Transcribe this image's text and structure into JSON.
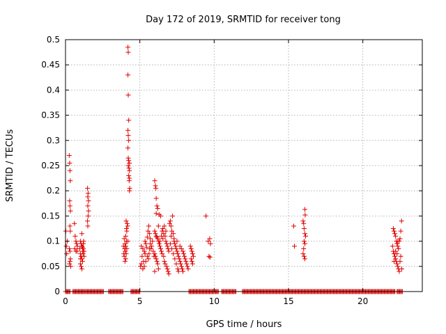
{
  "chart_data": {
    "type": "scatter",
    "title": "Day 172 of 2019, SRMTID for receiver tong",
    "xlabel": "GPS time / hours",
    "ylabel": "SRMTID / TECUs",
    "xlim": [
      0,
      24
    ],
    "ylim": [
      0,
      0.5
    ],
    "xticks": [
      0,
      5,
      10,
      15,
      20
    ],
    "xtick_labels": [
      "0",
      "5",
      "10",
      "15",
      "20"
    ],
    "yticks": [
      0,
      0.05,
      0.1,
      0.15,
      0.2,
      0.25,
      0.3,
      0.35,
      0.4,
      0.45,
      0.5
    ],
    "ytick_labels": [
      "0",
      "0.05",
      "0.1",
      "0.15",
      "0.2",
      "0.25",
      "0.3",
      "0.35",
      "0.4",
      "0.45",
      "0.5"
    ],
    "grid": true,
    "marker": "+",
    "color": "#e00000",
    "series": [
      {
        "name": "SRMTID",
        "points": [
          [
            0.02,
            0.12
          ],
          [
            0.05,
            0.09
          ],
          [
            0.08,
            0.075
          ],
          [
            0.12,
            0.1
          ],
          [
            0.25,
            0.27
          ],
          [
            0.28,
            0.255
          ],
          [
            0.3,
            0.24
          ],
          [
            0.32,
            0.22
          ],
          [
            0.28,
            0.18
          ],
          [
            0.3,
            0.17
          ],
          [
            0.33,
            0.16
          ],
          [
            0.3,
            0.13
          ],
          [
            0.32,
            0.12
          ],
          [
            0.26,
            0.085
          ],
          [
            0.3,
            0.08
          ],
          [
            0.33,
            0.065
          ],
          [
            0.3,
            0.06
          ],
          [
            0.27,
            0.055
          ],
          [
            0.35,
            0.05
          ],
          [
            0.6,
            0.135
          ],
          [
            0.65,
            0.11
          ],
          [
            0.7,
            0.1
          ],
          [
            0.75,
            0.095
          ],
          [
            0.8,
            0.09
          ],
          [
            0.62,
            0.085
          ],
          [
            0.7,
            0.08
          ],
          [
            0.78,
            0.08
          ],
          [
            1.0,
            0.1
          ],
          [
            1.05,
            0.095
          ],
          [
            1.1,
            0.09
          ],
          [
            1.15,
            0.088
          ],
          [
            1.2,
            0.085
          ],
          [
            1.25,
            0.08
          ],
          [
            1.0,
            0.075
          ],
          [
            1.05,
            0.07
          ],
          [
            1.1,
            0.065
          ],
          [
            1.15,
            0.06
          ],
          [
            1.0,
            0.055
          ],
          [
            1.05,
            0.05
          ],
          [
            1.1,
            0.045
          ],
          [
            1.2,
            0.095
          ],
          [
            1.22,
            0.1
          ],
          [
            1.1,
            0.115
          ],
          [
            1.15,
            0.08
          ],
          [
            0.95,
            0.085
          ],
          [
            1.0,
            0.065
          ],
          [
            1.25,
            0.07
          ],
          [
            1.18,
            0.075
          ],
          [
            1.48,
            0.205
          ],
          [
            1.52,
            0.195
          ],
          [
            1.5,
            0.188
          ],
          [
            1.55,
            0.18
          ],
          [
            1.5,
            0.17
          ],
          [
            1.55,
            0.16
          ],
          [
            1.52,
            0.15
          ],
          [
            1.48,
            0.14
          ],
          [
            1.5,
            0.13
          ],
          [
            3.95,
            0.105
          ],
          [
            4.0,
            0.095
          ],
          [
            4.05,
            0.09
          ],
          [
            3.98,
            0.085
          ],
          [
            4.02,
            0.08
          ],
          [
            4.08,
            0.075
          ],
          [
            3.95,
            0.07
          ],
          [
            4.05,
            0.065
          ],
          [
            4.1,
            0.1
          ],
          [
            4.12,
            0.12
          ],
          [
            4.08,
            0.14
          ],
          [
            4.15,
            0.135
          ],
          [
            4.1,
            0.125
          ],
          [
            4.0,
            0.06
          ],
          [
            4.05,
            0.11
          ],
          [
            4.12,
            0.085
          ],
          [
            4.18,
            0.13
          ],
          [
            4.2,
            0.1
          ],
          [
            3.9,
            0.09
          ],
          [
            3.92,
            0.075
          ],
          [
            4.2,
            0.485
          ],
          [
            4.22,
            0.475
          ],
          [
            4.2,
            0.43
          ],
          [
            4.22,
            0.39
          ],
          [
            4.25,
            0.34
          ],
          [
            4.2,
            0.32
          ],
          [
            4.22,
            0.31
          ],
          [
            4.25,
            0.3
          ],
          [
            4.2,
            0.285
          ],
          [
            4.22,
            0.265
          ],
          [
            4.25,
            0.26
          ],
          [
            4.3,
            0.255
          ],
          [
            4.22,
            0.25
          ],
          [
            4.27,
            0.245
          ],
          [
            4.3,
            0.24
          ],
          [
            4.25,
            0.23
          ],
          [
            4.3,
            0.225
          ],
          [
            4.28,
            0.22
          ],
          [
            4.32,
            0.205
          ],
          [
            4.3,
            0.2
          ],
          [
            5.1,
            0.09
          ],
          [
            5.2,
            0.085
          ],
          [
            5.3,
            0.08
          ],
          [
            5.15,
            0.07
          ],
          [
            5.25,
            0.06
          ],
          [
            5.1,
            0.055
          ],
          [
            5.05,
            0.05
          ],
          [
            5.2,
            0.045
          ],
          [
            5.3,
            0.05
          ],
          [
            5.35,
            0.1
          ],
          [
            5.4,
            0.095
          ],
          [
            5.45,
            0.088
          ],
          [
            5.5,
            0.108
          ],
          [
            5.55,
            0.12
          ],
          [
            5.6,
            0.13
          ],
          [
            5.65,
            0.115
          ],
          [
            5.7,
            0.105
          ],
          [
            5.5,
            0.07
          ],
          [
            5.58,
            0.065
          ],
          [
            5.62,
            0.075
          ],
          [
            5.75,
            0.085
          ],
          [
            5.8,
            0.09
          ],
          [
            5.85,
            0.1
          ],
          [
            5.9,
            0.08
          ],
          [
            5.95,
            0.07
          ],
          [
            5.4,
            0.06
          ],
          [
            5.35,
            0.075
          ],
          [
            5.7,
            0.095
          ],
          [
            5.65,
            0.085
          ],
          [
            6.0,
            0.22
          ],
          [
            6.05,
            0.21
          ],
          [
            6.08,
            0.205
          ],
          [
            6.1,
            0.185
          ],
          [
            6.15,
            0.17
          ],
          [
            6.2,
            0.165
          ],
          [
            6.1,
            0.155
          ],
          [
            6.3,
            0.153
          ],
          [
            6.4,
            0.15
          ],
          [
            6.0,
            0.12
          ],
          [
            6.05,
            0.115
          ],
          [
            6.1,
            0.11
          ],
          [
            6.15,
            0.108
          ],
          [
            6.2,
            0.105
          ],
          [
            6.25,
            0.1
          ],
          [
            6.3,
            0.095
          ],
          [
            6.35,
            0.09
          ],
          [
            6.4,
            0.085
          ],
          [
            6.45,
            0.08
          ],
          [
            6.0,
            0.075
          ],
          [
            6.05,
            0.07
          ],
          [
            6.1,
            0.065
          ],
          [
            6.15,
            0.06
          ],
          [
            6.2,
            0.055
          ],
          [
            6.25,
            0.045
          ],
          [
            6.0,
            0.04
          ],
          [
            6.5,
            0.12
          ],
          [
            6.55,
            0.125
          ],
          [
            6.6,
            0.115
          ],
          [
            6.7,
            0.11
          ],
          [
            6.75,
            0.1
          ],
          [
            6.8,
            0.095
          ],
          [
            6.85,
            0.09
          ],
          [
            6.9,
            0.085
          ],
          [
            6.95,
            0.08
          ],
          [
            6.5,
            0.075
          ],
          [
            6.6,
            0.07
          ],
          [
            6.65,
            0.06
          ],
          [
            6.7,
            0.055
          ],
          [
            6.8,
            0.05
          ],
          [
            6.85,
            0.045
          ],
          [
            6.9,
            0.04
          ],
          [
            6.95,
            0.035
          ],
          [
            6.35,
            0.1
          ],
          [
            6.45,
            0.11
          ],
          [
            6.55,
            0.105
          ],
          [
            6.25,
            0.13
          ],
          [
            6.65,
            0.13
          ],
          [
            6.75,
            0.12
          ],
          [
            7.0,
            0.135
          ],
          [
            7.05,
            0.14
          ],
          [
            7.1,
            0.13
          ],
          [
            7.15,
            0.12
          ],
          [
            7.2,
            0.15
          ],
          [
            7.25,
            0.115
          ],
          [
            7.3,
            0.1
          ],
          [
            7.35,
            0.095
          ],
          [
            7.4,
            0.09
          ],
          [
            7.45,
            0.085
          ],
          [
            7.5,
            0.08
          ],
          [
            7.55,
            0.075
          ],
          [
            7.6,
            0.07
          ],
          [
            7.65,
            0.065
          ],
          [
            7.7,
            0.06
          ],
          [
            7.75,
            0.055
          ],
          [
            7.8,
            0.05
          ],
          [
            7.85,
            0.045
          ],
          [
            7.9,
            0.04
          ],
          [
            7.05,
            0.095
          ],
          [
            7.15,
            0.085
          ],
          [
            7.25,
            0.075
          ],
          [
            7.35,
            0.065
          ],
          [
            7.45,
            0.055
          ],
          [
            7.55,
            0.045
          ],
          [
            7.6,
            0.04
          ],
          [
            7.7,
            0.09
          ],
          [
            7.8,
            0.085
          ],
          [
            7.9,
            0.08
          ],
          [
            7.95,
            0.075
          ],
          [
            8.0,
            0.07
          ],
          [
            8.05,
            0.065
          ],
          [
            8.1,
            0.06
          ],
          [
            8.15,
            0.055
          ],
          [
            8.2,
            0.05
          ],
          [
            8.25,
            0.045
          ],
          [
            7.1,
            0.11
          ],
          [
            7.3,
            0.105
          ],
          [
            7.5,
            0.1
          ],
          [
            8.4,
            0.09
          ],
          [
            8.45,
            0.085
          ],
          [
            8.5,
            0.08
          ],
          [
            8.55,
            0.075
          ],
          [
            8.6,
            0.07
          ],
          [
            8.45,
            0.065
          ],
          [
            8.5,
            0.06
          ],
          [
            8.55,
            0.055
          ],
          [
            9.45,
            0.15
          ],
          [
            9.6,
            0.1
          ],
          [
            9.7,
            0.105
          ],
          [
            9.75,
            0.095
          ],
          [
            9.65,
            0.07
          ],
          [
            9.72,
            0.068
          ],
          [
            15.35,
            0.13
          ],
          [
            15.4,
            0.09
          ],
          [
            15.98,
            0.14
          ],
          [
            16.02,
            0.135
          ],
          [
            16.05,
            0.125
          ],
          [
            16.1,
            0.115
          ],
          [
            16.15,
            0.11
          ],
          [
            16.05,
            0.1
          ],
          [
            16.1,
            0.095
          ],
          [
            16.02,
            0.085
          ],
          [
            15.98,
            0.075
          ],
          [
            16.05,
            0.07
          ],
          [
            16.1,
            0.065
          ],
          [
            16.1,
            0.163
          ],
          [
            16.12,
            0.152
          ],
          [
            22.05,
            0.125
          ],
          [
            22.1,
            0.12
          ],
          [
            22.15,
            0.115
          ],
          [
            22.2,
            0.11
          ],
          [
            22.25,
            0.1
          ],
          [
            22.3,
            0.095
          ],
          [
            22.35,
            0.09
          ],
          [
            22.4,
            0.085
          ],
          [
            22.05,
            0.08
          ],
          [
            22.1,
            0.075
          ],
          [
            22.15,
            0.07
          ],
          [
            22.2,
            0.065
          ],
          [
            22.25,
            0.06
          ],
          [
            22.3,
            0.055
          ],
          [
            22.35,
            0.05
          ],
          [
            22.4,
            0.045
          ],
          [
            22.45,
            0.04
          ],
          [
            22.5,
            0.06
          ],
          [
            22.55,
            0.07
          ],
          [
            22.6,
            0.14
          ],
          [
            22.55,
            0.12
          ],
          [
            22.5,
            0.105
          ],
          [
            22.45,
            0.1
          ],
          [
            22.0,
            0.09
          ],
          [
            22.2,
            0.08
          ],
          [
            22.3,
            0.075
          ],
          [
            22.35,
            0.1
          ],
          [
            22.1,
            0.06
          ],
          [
            22.62,
            0.045
          ]
        ],
        "zero_segments": [
          [
            0.0,
            0.35
          ],
          [
            0.5,
            1.3
          ],
          [
            1.35,
            2.6
          ],
          [
            2.9,
            3.9
          ],
          [
            4.4,
            5.0
          ],
          [
            8.3,
            10.3
          ],
          [
            10.5,
            11.5
          ],
          [
            11.9,
            22.2
          ],
          [
            22.3,
            22.7
          ]
        ],
        "zero_spacing": 0.06
      }
    ]
  }
}
